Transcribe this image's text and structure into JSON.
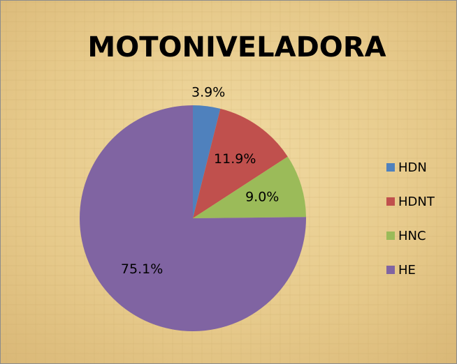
{
  "chart_data": {
    "type": "pie",
    "title": "MOTONIVELADORA",
    "categories": [
      "HDN",
      "HDNT",
      "HNC",
      "HE"
    ],
    "values": [
      3.9,
      11.9,
      9.0,
      75.1
    ],
    "value_labels": [
      "3.9%",
      "11.9%",
      "9.0%",
      "75.1%"
    ],
    "colors": [
      "#4f81bd",
      "#c0504d",
      "#9bbb59",
      "#8064a2"
    ],
    "legend": "right"
  }
}
